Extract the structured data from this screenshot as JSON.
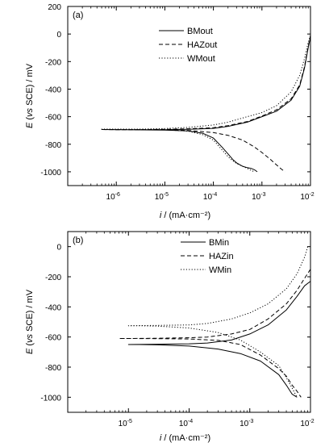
{
  "chart_data": [
    {
      "type": "line",
      "panel_label": "(a)",
      "xlabel": {
        "italic": "i",
        "rest": " / (mA·cm⁻²)"
      },
      "ylabel": {
        "italic1": "E",
        "mid1": " (",
        "italic2": "vs",
        "rest": " SCE) / mV"
      },
      "xscale": "log",
      "xlim": [
        1e-07,
        0.01
      ],
      "ylim": [
        -1100,
        200
      ],
      "xticks": [
        {
          "value": 1e-06,
          "label": "10",
          "sup": "-6"
        },
        {
          "value": 1e-05,
          "label": "10",
          "sup": "-5"
        },
        {
          "value": 0.0001,
          "label": "10",
          "sup": "-4"
        },
        {
          "value": 0.001,
          "label": "10",
          "sup": "-3"
        },
        {
          "value": 0.01,
          "label": "10",
          "sup": "-2"
        }
      ],
      "yticks": [
        {
          "value": 200,
          "label": "200"
        },
        {
          "value": 0,
          "label": "0"
        },
        {
          "value": -200,
          "label": "-200"
        },
        {
          "value": -400,
          "label": "-400"
        },
        {
          "value": -600,
          "label": "-600"
        },
        {
          "value": -800,
          "label": "-800"
        },
        {
          "value": -1000,
          "label": "-1000"
        }
      ],
      "legend_position": "top-right",
      "series": [
        {
          "name": "BMout",
          "dash": "solid",
          "points": [
            [
              0.01,
              -20
            ],
            [
              0.009,
              -100
            ],
            [
              0.0075,
              -250
            ],
            [
              0.006,
              -380
            ],
            [
              0.004,
              -480
            ],
            [
              0.002,
              -560
            ],
            [
              0.001,
              -600
            ],
            [
              0.0005,
              -640
            ],
            [
              0.0002,
              -670
            ],
            [
              0.0001,
              -685
            ],
            [
              3e-05,
              -692
            ],
            [
              1e-05,
              -695
            ],
            [
              3e-06,
              -695
            ],
            [
              1e-06,
              -694
            ],
            [
              5e-07,
              -693
            ],
            [
              1e-05,
              -697
            ],
            [
              3e-05,
              -703
            ],
            [
              6e-05,
              -720
            ],
            [
              0.0001,
              -755
            ],
            [
              0.00015,
              -820
            ],
            [
              0.0002,
              -870
            ],
            [
              0.00025,
              -910
            ],
            [
              0.0003,
              -935
            ],
            [
              0.0004,
              -960
            ],
            [
              0.0005,
              -970
            ],
            [
              0.0006,
              -975
            ],
            [
              0.0007,
              -985
            ],
            [
              0.0008,
              -1000
            ]
          ]
        },
        {
          "name": "HAZout",
          "dash": "dashed",
          "points": [
            [
              0.01,
              -10
            ],
            [
              0.009,
              -90
            ],
            [
              0.0075,
              -240
            ],
            [
              0.006,
              -370
            ],
            [
              0.004,
              -470
            ],
            [
              0.002,
              -550
            ],
            [
              0.001,
              -595
            ],
            [
              0.0005,
              -635
            ],
            [
              0.0002,
              -665
            ],
            [
              0.0001,
              -680
            ],
            [
              3e-05,
              -688
            ],
            [
              1e-05,
              -692
            ],
            [
              3e-06,
              -694
            ],
            [
              1e-06,
              -694
            ],
            [
              5e-07,
              -693
            ],
            [
              1e-05,
              -695
            ],
            [
              3e-05,
              -700
            ],
            [
              0.0001,
              -715
            ],
            [
              0.0002,
              -735
            ],
            [
              0.0004,
              -770
            ],
            [
              0.0007,
              -820
            ],
            [
              0.001,
              -860
            ],
            [
              0.0015,
              -910
            ],
            [
              0.002,
              -950
            ],
            [
              0.0025,
              -980
            ],
            [
              0.003,
              -1000
            ]
          ]
        },
        {
          "name": "WMout",
          "dash": "dotted",
          "points": [
            [
              0.01,
              -10
            ],
            [
              0.009,
              -60
            ],
            [
              0.0075,
              -180
            ],
            [
              0.006,
              -300
            ],
            [
              0.004,
              -420
            ],
            [
              0.002,
              -520
            ],
            [
              0.001,
              -570
            ],
            [
              0.0005,
              -600
            ],
            [
              0.0002,
              -640
            ],
            [
              0.0001,
              -660
            ],
            [
              3e-05,
              -678
            ],
            [
              1e-05,
              -686
            ],
            [
              3e-06,
              -690
            ],
            [
              1e-06,
              -690
            ],
            [
              5e-07,
              -690
            ],
            [
              1e-05,
              -695
            ],
            [
              3e-05,
              -705
            ],
            [
              6e-05,
              -730
            ],
            [
              0.0001,
              -770
            ],
            [
              0.00015,
              -840
            ],
            [
              0.0002,
              -890
            ],
            [
              0.00025,
              -920
            ],
            [
              0.0003,
              -940
            ],
            [
              0.0004,
              -960
            ],
            [
              0.0005,
              -975
            ],
            [
              0.0006,
              -990
            ],
            [
              0.0007,
              -1000
            ]
          ]
        }
      ]
    },
    {
      "type": "line",
      "panel_label": "(b)",
      "xlabel": {
        "italic": "i",
        "rest": " / (mA·cm⁻²)"
      },
      "ylabel": {
        "italic1": "E",
        "mid1": " (",
        "italic2": "vs",
        "rest": " SCE) / mV"
      },
      "xscale": "log",
      "xlim": [
        1e-06,
        0.01
      ],
      "ylim": [
        -1100,
        100
      ],
      "xticks": [
        {
          "value": 1e-05,
          "label": "10",
          "sup": "-5"
        },
        {
          "value": 0.0001,
          "label": "10",
          "sup": "-4"
        },
        {
          "value": 0.001,
          "label": "10",
          "sup": "-3"
        },
        {
          "value": 0.01,
          "label": "10",
          "sup": "-2"
        }
      ],
      "yticks": [
        {
          "value": 0,
          "label": "0"
        },
        {
          "value": -200,
          "label": "-200"
        },
        {
          "value": -400,
          "label": "-400"
        },
        {
          "value": -600,
          "label": "-600"
        },
        {
          "value": -800,
          "label": "-800"
        },
        {
          "value": -1000,
          "label": "-1000"
        }
      ],
      "legend_position": "top-right",
      "series": [
        {
          "name": "BMin",
          "dash": "solid",
          "points": [
            [
              0.01,
              -230
            ],
            [
              0.008,
              -260
            ],
            [
              0.006,
              -330
            ],
            [
              0.004,
              -420
            ],
            [
              0.002,
              -520
            ],
            [
              0.001,
              -580
            ],
            [
              0.0005,
              -620
            ],
            [
              0.0002,
              -640
            ],
            [
              0.0001,
              -645
            ],
            [
              3e-05,
              -648
            ],
            [
              1e-05,
              -650
            ],
            [
              1.5e-05,
              -650
            ],
            [
              3e-05,
              -652
            ],
            [
              0.0001,
              -660
            ],
            [
              0.0003,
              -680
            ],
            [
              0.0007,
              -710
            ],
            [
              0.0015,
              -760
            ],
            [
              0.003,
              -850
            ],
            [
              0.004,
              -920
            ],
            [
              0.005,
              -980
            ],
            [
              0.006,
              -1000
            ]
          ]
        },
        {
          "name": "HAZin",
          "dash": "dashed",
          "points": [
            [
              0.01,
              -150
            ],
            [
              0.008,
              -210
            ],
            [
              0.006,
              -290
            ],
            [
              0.004,
              -380
            ],
            [
              0.002,
              -480
            ],
            [
              0.001,
              -550
            ],
            [
              0.0005,
              -580
            ],
            [
              0.0002,
              -600
            ],
            [
              0.0001,
              -605
            ],
            [
              3e-05,
              -608
            ],
            [
              1e-05,
              -610
            ],
            [
              7e-06,
              -610
            ],
            [
              1e-05,
              -610
            ],
            [
              3e-05,
              -611
            ],
            [
              0.0001,
              -613
            ],
            [
              0.0003,
              -622
            ],
            [
              0.0007,
              -650
            ],
            [
              0.0015,
              -720
            ],
            [
              0.003,
              -810
            ],
            [
              0.004,
              -860
            ],
            [
              0.005,
              -920
            ],
            [
              0.006,
              -960
            ],
            [
              0.007,
              -1000
            ]
          ]
        },
        {
          "name": "WMin",
          "dash": "dotted",
          "points": [
            [
              0.009,
              0
            ],
            [
              0.008,
              -70
            ],
            [
              0.006,
              -180
            ],
            [
              0.004,
              -280
            ],
            [
              0.002,
              -380
            ],
            [
              0.001,
              -440
            ],
            [
              0.0005,
              -480
            ],
            [
              0.0002,
              -510
            ],
            [
              0.0001,
              -520
            ],
            [
              3e-05,
              -523
            ],
            [
              1e-05,
              -525
            ],
            [
              1.5e-05,
              -525
            ],
            [
              3e-05,
              -528
            ],
            [
              0.0001,
              -540
            ],
            [
              0.0003,
              -570
            ],
            [
              0.0007,
              -620
            ],
            [
              0.0015,
              -700
            ],
            [
              0.003,
              -790
            ],
            [
              0.004,
              -870
            ],
            [
              0.005,
              -940
            ],
            [
              0.006,
              -1000
            ]
          ]
        }
      ]
    }
  ]
}
